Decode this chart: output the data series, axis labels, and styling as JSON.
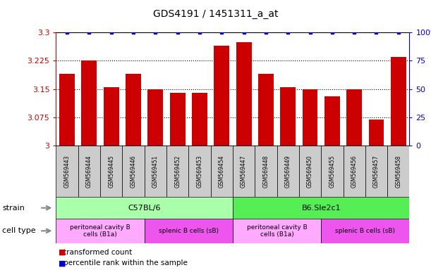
{
  "title": "GDS4191 / 1451311_a_at",
  "samples": [
    "GSM569443",
    "GSM569444",
    "GSM569445",
    "GSM569446",
    "GSM569451",
    "GSM569452",
    "GSM569453",
    "GSM569454",
    "GSM569447",
    "GSM569448",
    "GSM569449",
    "GSM569450",
    "GSM569455",
    "GSM569456",
    "GSM569457",
    "GSM569458"
  ],
  "bar_values": [
    3.19,
    3.225,
    3.155,
    3.19,
    3.15,
    3.14,
    3.14,
    3.265,
    3.275,
    3.19,
    3.155,
    3.15,
    3.13,
    3.15,
    3.07,
    3.235
  ],
  "percentile_values": [
    100,
    100,
    100,
    100,
    100,
    100,
    100,
    100,
    100,
    100,
    100,
    100,
    100,
    100,
    100,
    100
  ],
  "bar_color": "#cc0000",
  "percentile_color": "#0000cc",
  "ylim_left": [
    3.0,
    3.3
  ],
  "ylim_right": [
    0,
    100
  ],
  "yticks_left": [
    3.0,
    3.075,
    3.15,
    3.225,
    3.3
  ],
  "yticks_right": [
    0,
    25,
    50,
    75,
    100
  ],
  "ytick_labels_left": [
    "3",
    "3.075",
    "3.15",
    "3.225",
    "3.3"
  ],
  "ytick_labels_right": [
    "0",
    "25",
    "50",
    "75",
    "100%"
  ],
  "strain_groups": [
    {
      "label": "C57BL/6",
      "start": 0,
      "end": 8,
      "color": "#aaffaa"
    },
    {
      "label": "B6.Sle2c1",
      "start": 8,
      "end": 16,
      "color": "#55ee55"
    }
  ],
  "cell_type_groups": [
    {
      "label": "peritoneal cavity B\ncells (B1a)",
      "start": 0,
      "end": 4,
      "color": "#ffaaff"
    },
    {
      "label": "splenic B cells (sB)",
      "start": 4,
      "end": 8,
      "color": "#ee55ee"
    },
    {
      "label": "peritoneal cavity B\ncells (B1a)",
      "start": 8,
      "end": 12,
      "color": "#ffaaff"
    },
    {
      "label": "splenic B cells (sB)",
      "start": 12,
      "end": 16,
      "color": "#ee55ee"
    }
  ],
  "legend_items": [
    {
      "color": "#cc0000",
      "label": "transformed count"
    },
    {
      "color": "#0000cc",
      "label": "percentile rank within the sample"
    }
  ],
  "strain_label": "strain",
  "cell_type_label": "cell type",
  "background_color": "#ffffff",
  "bar_width": 0.7,
  "sample_box_color": "#cccccc",
  "arrow_color": "#888888"
}
